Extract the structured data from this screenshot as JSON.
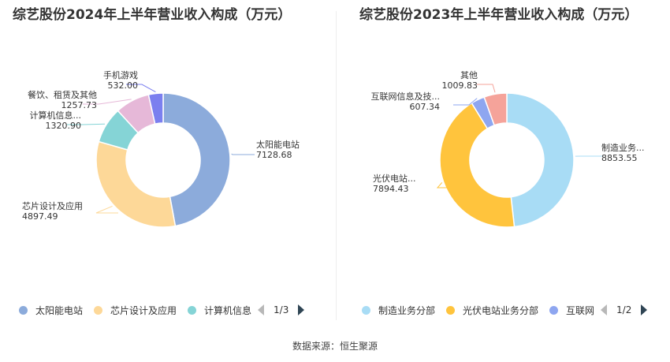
{
  "chart_data": [
    {
      "type": "pie",
      "title": "综艺股份2024年上半年营业收入构成（万元）",
      "categories": [
        "太阳能电站",
        "芯片设计及应用",
        "计算机信息...",
        "餐饮、租赁及其他",
        "手机游戏"
      ],
      "values": [
        7128.68,
        4897.49,
        1320.9,
        1257.73,
        532.0
      ],
      "value_labels": [
        "7128.68",
        "4897.49",
        "1320.90",
        "1257.73",
        "532.00"
      ],
      "colors": [
        "#8cabdb",
        "#fdd898",
        "#85d4d6",
        "#e6b8d8",
        "#7b7fef"
      ],
      "legend": {
        "items": [
          "太阳能电站",
          "芯片设计及应用",
          "计算机信息"
        ],
        "page": "1/3",
        "position": "bottom"
      }
    },
    {
      "type": "pie",
      "title": "综艺股份2023年上半年营业收入构成（万元）",
      "categories": [
        "制造业务...",
        "光伏电站...",
        "互联网信息及技...",
        "其他"
      ],
      "values": [
        8853.55,
        7894.43,
        607.34,
        1009.83
      ],
      "value_labels": [
        "8853.55",
        "7894.43",
        "607.34",
        "1009.83"
      ],
      "colors": [
        "#a8dcf5",
        "#ffc43d",
        "#8ea6f0",
        "#f5a39a"
      ],
      "legend": {
        "items": [
          "制造业务分部",
          "光伏电站业务分部",
          "互联网"
        ],
        "page": "1/2",
        "position": "bottom"
      }
    }
  ],
  "footer": {
    "source": "数据来源：恒生聚源"
  }
}
